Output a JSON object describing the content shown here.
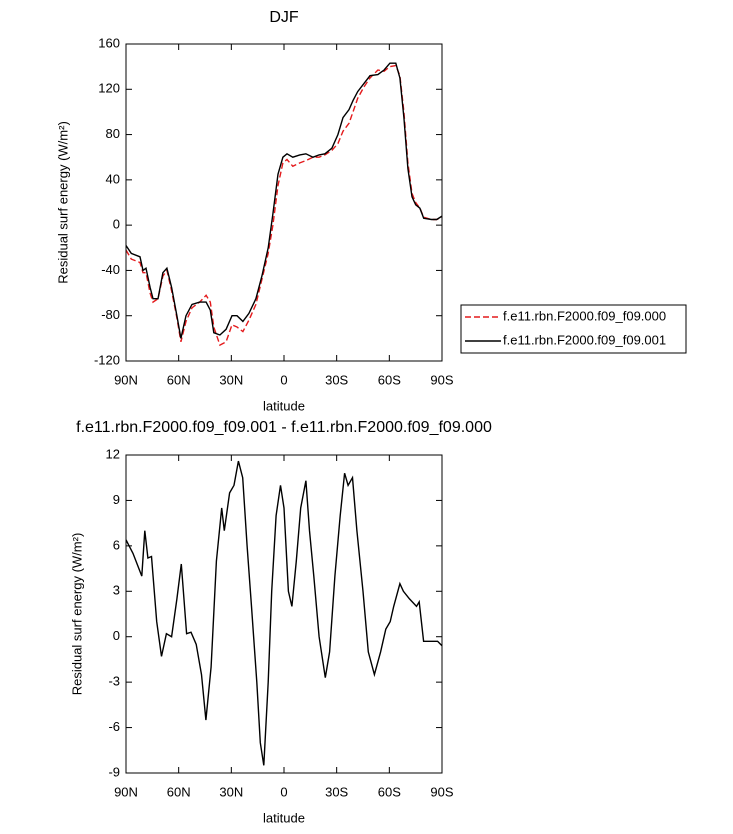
{
  "chart_data": [
    {
      "type": "line",
      "title": "DJF",
      "xlabel": "latitude",
      "ylabel": "Residual surf energy (W/m²)",
      "x": [
        90,
        87,
        82,
        80.3,
        78.6,
        76.3,
        74.6,
        71.8,
        69,
        66.7,
        64,
        61,
        58.7,
        55.8,
        52.4,
        48,
        44.4,
        42,
        40,
        36.5,
        33,
        29.6,
        26.8,
        23.4,
        20,
        16,
        12.6,
        9,
        6.3,
        3.4,
        0.6,
        -1.7,
        -5,
        -9,
        -12.5,
        -16.5,
        -20,
        -23.3,
        -27.3,
        -30.7,
        -33.6,
        -37,
        -39.3,
        -42,
        -45.5,
        -49,
        -53.5,
        -57,
        -60.3,
        -63.7,
        -66,
        -68.3,
        -70.6,
        -72.9,
        -75,
        -77.4,
        -79.6,
        -84,
        -87,
        -90
      ],
      "xlim": [
        90,
        -90
      ],
      "xticks": [
        {
          "value": 90,
          "label": "90N"
        },
        {
          "value": 60,
          "label": "60N"
        },
        {
          "value": 30,
          "label": "30N"
        },
        0,
        {
          "value": -30,
          "label": "30S"
        },
        {
          "value": -60,
          "label": "60S"
        },
        {
          "value": -90,
          "label": "90S"
        }
      ],
      "ylim": [
        -120,
        160
      ],
      "yticks": [
        -120,
        -80,
        -40,
        0,
        40,
        80,
        120,
        160
      ],
      "legend": "right",
      "series": [
        {
          "name": "f.e11.rbn.F2000.f09_f09.000",
          "color": "#e41a1c",
          "dash": "dashed",
          "values": [
            -22,
            -30,
            -33,
            -42,
            -42,
            -60,
            -68,
            -65,
            -45,
            -40,
            -58,
            -82,
            -103,
            -85,
            -73,
            -68,
            -62,
            -68,
            -90,
            -106,
            -103,
            -88,
            -90,
            -94,
            -84,
            -70,
            -48,
            -25,
            0,
            35,
            55,
            58,
            52,
            55,
            57,
            60,
            60,
            62,
            66,
            72,
            83,
            90,
            100,
            112,
            122,
            130,
            137,
            136,
            140,
            141,
            132,
            100,
            55,
            28,
            20,
            15,
            7,
            5,
            5,
            7
          ]
        },
        {
          "name": "f.e11.rbn.F2000.f09_f09.001",
          "color": "#000000",
          "dash": "solid",
          "values": [
            -18,
            -25,
            -28,
            -40,
            -38,
            -55,
            -65,
            -65,
            -42,
            -38,
            -55,
            -80,
            -100,
            -80,
            -70,
            -68,
            -68,
            -75,
            -95,
            -97,
            -92,
            -80,
            -80,
            -85,
            -78,
            -65,
            -45,
            -20,
            10,
            45,
            60,
            63,
            60,
            62,
            63,
            60,
            62,
            63,
            68,
            80,
            95,
            102,
            110,
            118,
            125,
            132,
            133,
            137,
            143,
            143,
            130,
            95,
            50,
            25,
            18,
            15,
            6,
            5,
            5,
            8
          ]
        }
      ]
    },
    {
      "type": "line",
      "title": "f.e11.rbn.F2000.f09_f09.001 - f.e11.rbn.F2000.f09_f09.000",
      "xlabel": "latitude",
      "ylabel": "Residual surf energy (W/m²)",
      "x": [
        90,
        86,
        81,
        79.3,
        77.5,
        75.5,
        72.5,
        69.8,
        67,
        64,
        61,
        58.5,
        55.5,
        53,
        50,
        47,
        44.5,
        41.5,
        38.5,
        35.5,
        34,
        31,
        28.5,
        26,
        23.5,
        21,
        18.5,
        15.5,
        13.5,
        11.5,
        9,
        7,
        4.5,
        2,
        0,
        -2.5,
        -4.5,
        -7,
        -9.5,
        -12.5,
        -14.5,
        -17,
        -20,
        -23.5,
        -26,
        -29,
        -32,
        -34.5,
        -36.5,
        -39,
        -41.5,
        -45,
        -48,
        -51.5,
        -55,
        -58,
        -60.5,
        -62.5,
        -66,
        -68,
        -71.5,
        -75.5,
        -77,
        -79.5,
        -84,
        -87.5,
        -90
      ],
      "xlim": [
        90,
        -90
      ],
      "xticks": [
        {
          "value": 90,
          "label": "90N"
        },
        {
          "value": 60,
          "label": "60N"
        },
        {
          "value": 30,
          "label": "30N"
        },
        0,
        {
          "value": -30,
          "label": "30S"
        },
        {
          "value": -60,
          "label": "60S"
        },
        {
          "value": -90,
          "label": "90S"
        }
      ],
      "ylim": [
        -9,
        12
      ],
      "yticks": [
        -9,
        -6,
        -3,
        0,
        3,
        6,
        9,
        12
      ],
      "color": "#000000",
      "values": [
        6.4,
        5.5,
        4.0,
        7.0,
        5.2,
        5.3,
        1,
        -1.3,
        0.2,
        0,
        2.5,
        4.8,
        0.2,
        0.3,
        -0.5,
        -2.5,
        -5.5,
        -2,
        5,
        8.5,
        7,
        9.5,
        10,
        11.6,
        10.5,
        6,
        2,
        -3,
        -7,
        -8.5,
        -3,
        3,
        8,
        10,
        8.5,
        3,
        2,
        5,
        8.5,
        10.3,
        7,
        4,
        0,
        -2.7,
        -1,
        4,
        8,
        10.8,
        10,
        10.5,
        7,
        3,
        -1,
        -2.5,
        -1,
        0.5,
        1,
        2,
        3.5,
        3,
        2.5,
        2,
        2.3,
        -0.3,
        -0.3,
        -0.3,
        -0.6
      ]
    }
  ]
}
